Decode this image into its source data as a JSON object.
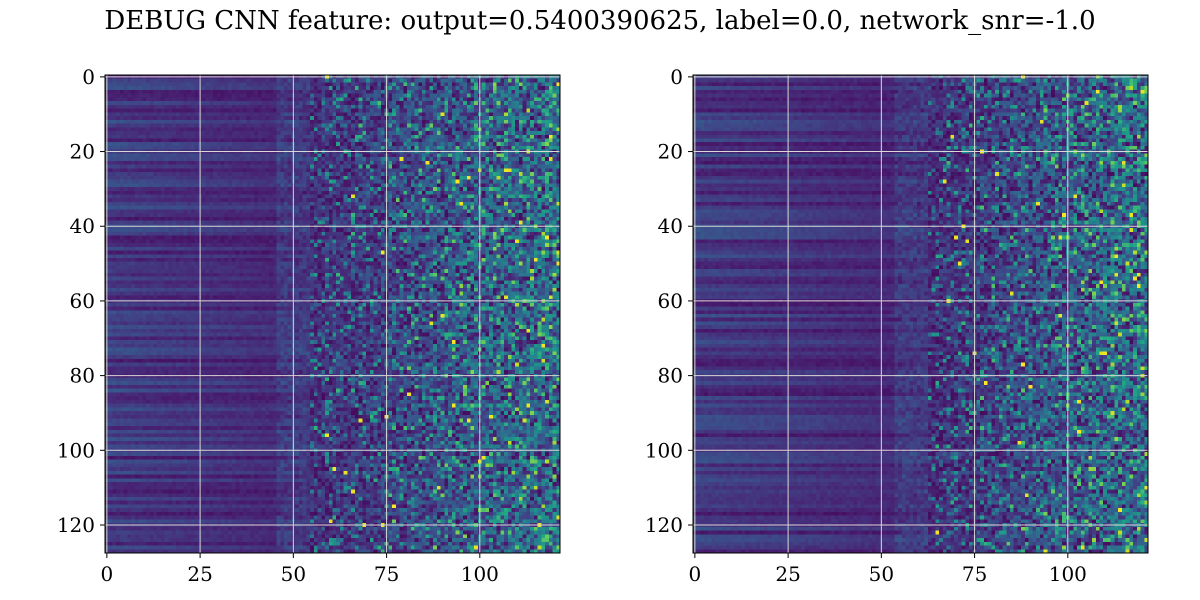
{
  "figure": {
    "title": "DEBUG CNN feature: output=0.5400390625, label=0.0, network_snr=-1.0"
  },
  "chart_data": [
    {
      "type": "heatmap",
      "panel": "left",
      "colormap": "viridis",
      "grid": true,
      "rows": 128,
      "cols": 122,
      "xlim": [
        -0.5,
        121.5
      ],
      "ylim": [
        127.5,
        -0.5
      ],
      "x_ticks": [
        0,
        25,
        50,
        75,
        100
      ],
      "y_ticks": [
        0,
        20,
        40,
        60,
        80,
        100,
        120
      ],
      "structure": "rows are horizontal bands; values low and smooth for columns 0-50, increasingly noisy and bright for columns 60-121 with sparse yellow pixels"
    },
    {
      "type": "heatmap",
      "panel": "right",
      "colormap": "viridis",
      "grid": true,
      "rows": 128,
      "cols": 122,
      "xlim": [
        -0.5,
        121.5
      ],
      "ylim": [
        127.5,
        -0.5
      ],
      "x_ticks": [
        0,
        25,
        50,
        75,
        100
      ],
      "y_ticks": [
        0,
        20,
        40,
        60,
        80,
        100,
        120
      ],
      "structure": "rows are horizontal bands; values low for columns 0-60, noisy with scattered teal/green/yellow pixels for columns 65-121"
    }
  ],
  "colors": {
    "viridis_low": "#440154",
    "viridis_mid": "#21918c",
    "viridis_high": "#fde725",
    "grid": "#d8d8d8"
  }
}
